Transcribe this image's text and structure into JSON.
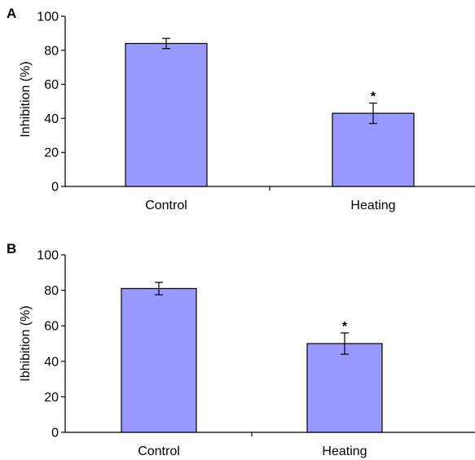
{
  "chart_data": [
    {
      "panel": "A",
      "type": "bar",
      "categories": [
        "Control",
        "Heating"
      ],
      "values": [
        84,
        43
      ],
      "errors": [
        3,
        6
      ],
      "significance": [
        "",
        "*"
      ],
      "ylabel": "Inhibition (%)",
      "xlabel": "",
      "ylim": [
        0,
        100
      ],
      "yticks": [
        0,
        20,
        40,
        60,
        80,
        100
      ],
      "grid": false,
      "legend": "none",
      "bar_color": "#9999ff"
    },
    {
      "panel": "B",
      "type": "bar",
      "categories": [
        "Control",
        "Heating"
      ],
      "values": [
        81,
        50
      ],
      "errors": [
        3.5,
        6
      ],
      "significance": [
        "",
        "*"
      ],
      "ylabel": "Ibhibition (%)",
      "xlabel": "",
      "ylim": [
        0,
        100
      ],
      "yticks": [
        0,
        20,
        40,
        60,
        80,
        100
      ],
      "grid": false,
      "legend": "none",
      "bar_color": "#9999ff"
    }
  ]
}
